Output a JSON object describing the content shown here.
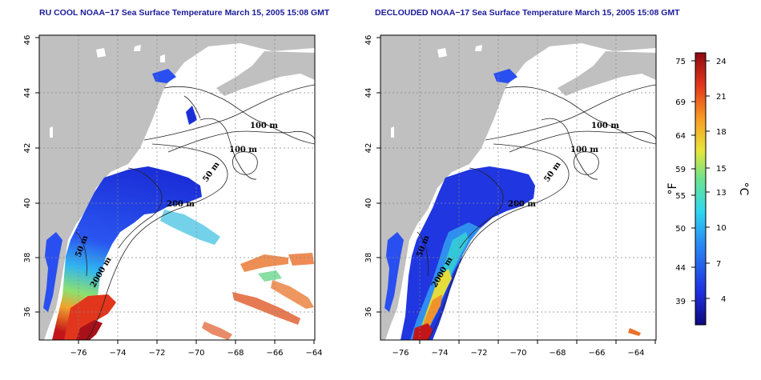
{
  "panels": [
    {
      "title": "RU COOL NOAA−17 Sea Surface Temperature March 15, 2005 15:08 GMT"
    },
    {
      "title": "DECLOUDED NOAA−17 Sea Surface Temperature March 15, 2005 15:08 GMT"
    }
  ],
  "axes": {
    "lon_ticks": [
      "−76",
      "−74",
      "−72",
      "−70",
      "−68",
      "−66",
      "−64"
    ],
    "lat_ticks": [
      "36",
      "38",
      "40",
      "42",
      "44",
      "46"
    ],
    "lon_range": [
      -77,
      -63
    ],
    "lat_range": [
      35,
      46
    ],
    "grid": true
  },
  "contour_labels": [
    "100 m",
    "100 m",
    "50 m",
    "200 m",
    "2000 m",
    "50 m"
  ],
  "colorbar": {
    "fahrenheit_ticks": [
      "75",
      "69",
      "64",
      "59",
      "55",
      "50",
      "44",
      "39"
    ],
    "celsius_ticks": [
      "24",
      "21",
      "18",
      "15",
      "13",
      "10",
      "7",
      "4"
    ],
    "fahrenheit_label": "°F",
    "celsius_label": "°C",
    "colors": [
      "#0d0a7a",
      "#1f2fe0",
      "#2a8cf5",
      "#2fd9ee",
      "#6fe38a",
      "#e9e63a",
      "#f79a23",
      "#e3361c",
      "#8c0a10"
    ]
  }
}
